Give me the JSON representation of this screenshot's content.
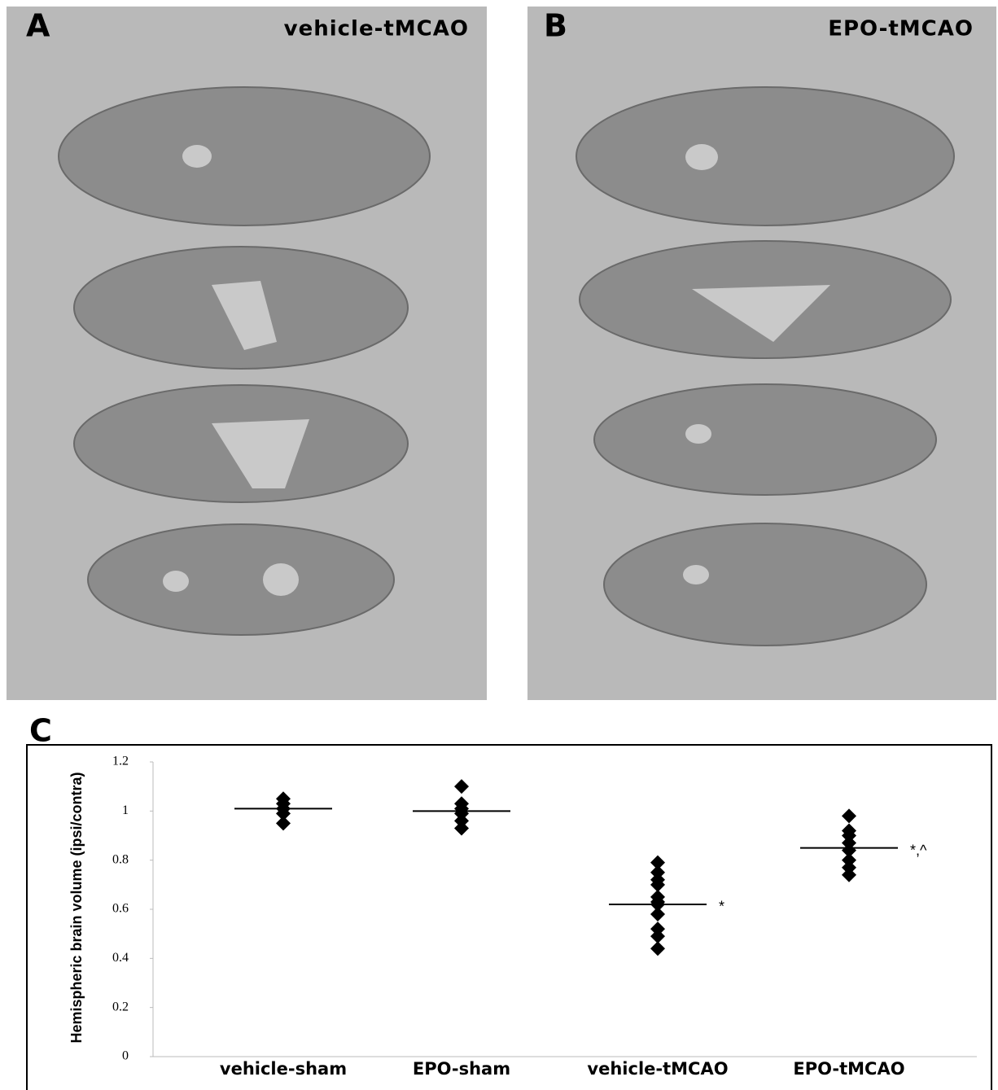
{
  "panels": [
    {
      "label": "A",
      "title": "vehicle-tMCAO"
    },
    {
      "label": "B",
      "title": "EPO-tMCAO"
    }
  ],
  "chart_data": {
    "type": "strip",
    "label": "C",
    "ylabel": "Hemispheric brain volume (ipsi/contra)",
    "categories": [
      "vehicle-sham",
      "EPO-sham",
      "vehicle-tMCAO",
      "EPO-tMCAO"
    ],
    "values": [
      [
        1.05,
        1.03,
        1.01,
        0.99,
        0.95
      ],
      [
        1.1,
        1.03,
        1.01,
        0.99,
        0.96,
        0.93
      ],
      [
        0.79,
        0.75,
        0.72,
        0.7,
        0.65,
        0.63,
        0.62,
        0.58,
        0.52,
        0.49,
        0.44
      ],
      [
        0.98,
        0.92,
        0.9,
        0.87,
        0.84,
        0.8,
        0.77,
        0.74
      ]
    ],
    "means": [
      1.01,
      1.0,
      0.62,
      0.85
    ],
    "annotations": [
      null,
      null,
      "*",
      "*,^"
    ],
    "color": "#000000",
    "ylim": [
      0,
      1.2
    ],
    "yticks": [
      0,
      0.2,
      0.4,
      0.6,
      0.8,
      1,
      1.2
    ]
  }
}
